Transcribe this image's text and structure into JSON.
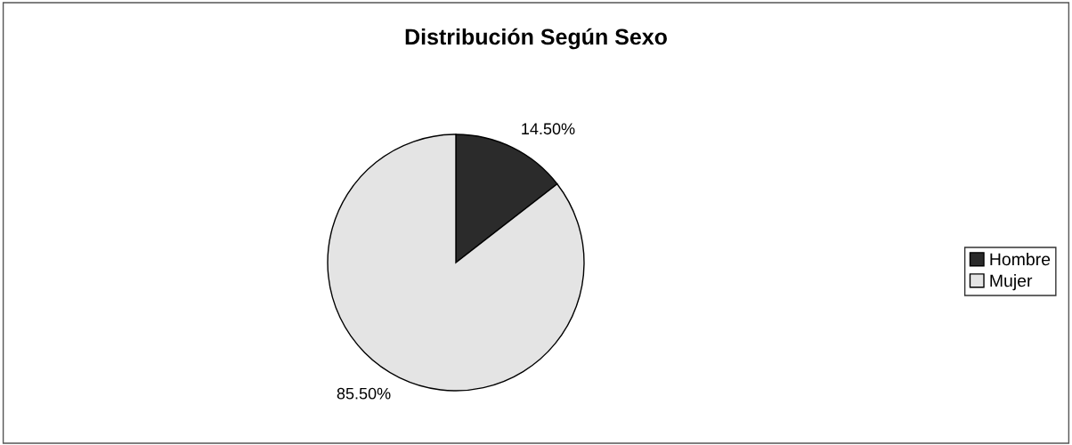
{
  "chart_data": {
    "type": "pie",
    "title": "Distribución Según Sexo",
    "categories": [
      "Hombre",
      "Mujer"
    ],
    "values": [
      14.5,
      85.5
    ],
    "colors": [
      "#2b2b2b",
      "#e4e4e4"
    ],
    "value_labels": [
      "14.50%",
      "85.50%"
    ],
    "legend": "right"
  }
}
